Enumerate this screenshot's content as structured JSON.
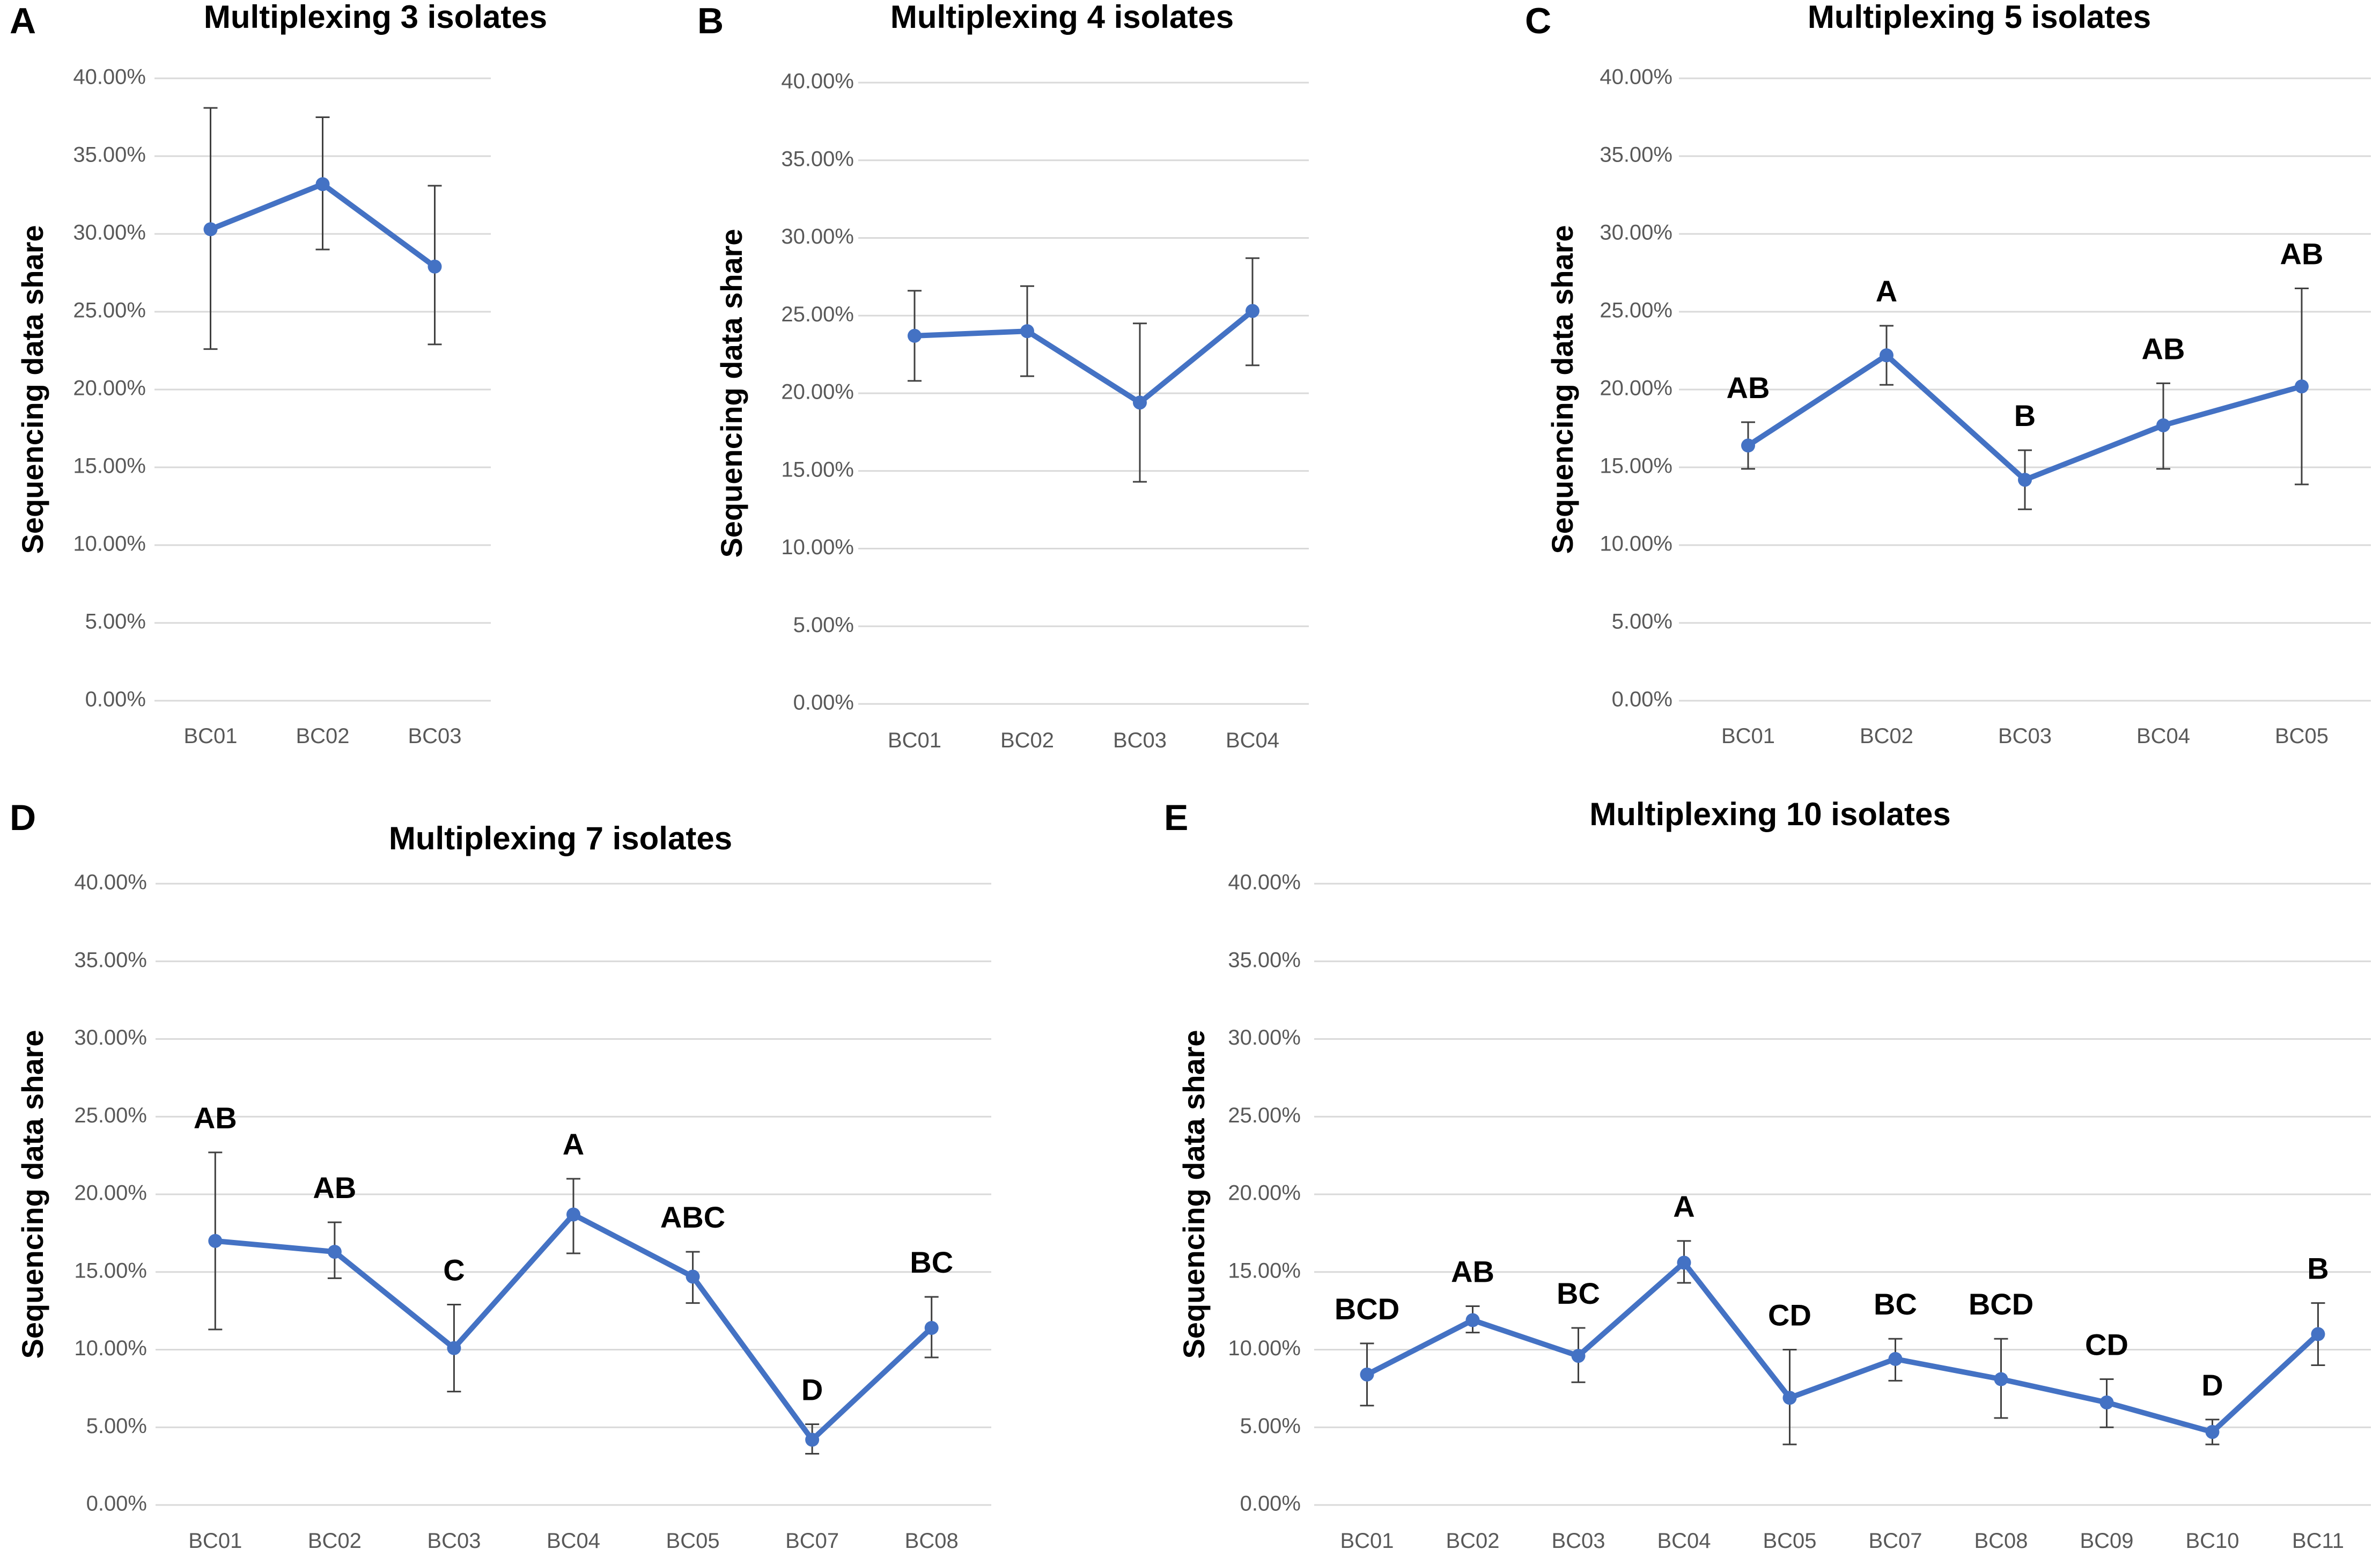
{
  "colors": {
    "series": "#4472c4",
    "grid": "#d9d9d9",
    "error_bar": "#404040",
    "tick_text": "#595959",
    "text": "#000000"
  },
  "chart_data": [
    {
      "panel": "A",
      "type": "line",
      "title": "Multiplexing 3 isolates",
      "ylabel": "Sequencing data share",
      "xlabel": "",
      "ylim": [
        0,
        40
      ],
      "yticks": [
        "0.00%",
        "5.00%",
        "10.00%",
        "15.00%",
        "20.00%",
        "25.00%",
        "30.00%",
        "35.00%",
        "40.00%"
      ],
      "categories": [
        "BC01",
        "BC02",
        "BC03"
      ],
      "values": [
        30.3,
        33.2,
        27.9
      ],
      "error_low": [
        22.6,
        29.0,
        22.9
      ],
      "error_high": [
        38.1,
        37.5,
        33.1
      ],
      "labels": [
        "",
        "",
        ""
      ],
      "grid": true
    },
    {
      "panel": "B",
      "type": "line",
      "title": "Multiplexing 4 isolates",
      "ylabel": "Sequencing data share",
      "xlabel": "",
      "ylim": [
        0,
        40
      ],
      "yticks": [
        "0.00%",
        "5.00%",
        "10.00%",
        "15.00%",
        "20.00%",
        "25.00%",
        "30.00%",
        "35.00%",
        "40.00%"
      ],
      "categories": [
        "BC01",
        "BC02",
        "BC03",
        "BC04"
      ],
      "values": [
        23.7,
        24.0,
        19.4,
        25.3
      ],
      "error_low": [
        20.8,
        21.1,
        14.3,
        21.8
      ],
      "error_high": [
        26.6,
        26.9,
        24.5,
        28.7
      ],
      "labels": [
        "",
        "",
        "",
        ""
      ],
      "grid": true
    },
    {
      "panel": "C",
      "type": "line",
      "title": "Multiplexing 5 isolates",
      "ylabel": "Sequencing data share",
      "xlabel": "",
      "ylim": [
        0,
        40
      ],
      "yticks": [
        "0.00%",
        "5.00%",
        "10.00%",
        "15.00%",
        "20.00%",
        "25.00%",
        "30.00%",
        "35.00%",
        "40.00%"
      ],
      "categories": [
        "BC01",
        "BC02",
        "BC03",
        "BC04",
        "BC05"
      ],
      "values": [
        16.4,
        22.2,
        14.2,
        17.7,
        20.2
      ],
      "error_low": [
        14.9,
        20.3,
        12.3,
        14.9,
        13.9
      ],
      "error_high": [
        17.9,
        24.1,
        16.1,
        20.4,
        26.5
      ],
      "labels": [
        "AB",
        "A",
        "B",
        "AB",
        "AB"
      ],
      "grid": true
    },
    {
      "panel": "D",
      "type": "line",
      "title": "Multiplexing 7 isolates",
      "ylabel": "Sequencing data share",
      "xlabel": "",
      "ylim": [
        0,
        40
      ],
      "yticks": [
        "0.00%",
        "5.00%",
        "10.00%",
        "15.00%",
        "20.00%",
        "25.00%",
        "30.00%",
        "35.00%",
        "40.00%"
      ],
      "categories": [
        "BC01",
        "BC02",
        "BC03",
        "BC04",
        "BC05",
        "BC07",
        "BC08"
      ],
      "values": [
        17.0,
        16.3,
        10.1,
        18.7,
        14.7,
        4.2,
        11.4
      ],
      "error_low": [
        11.3,
        14.6,
        7.3,
        16.2,
        13.0,
        3.3,
        9.5
      ],
      "error_high": [
        22.7,
        18.2,
        12.9,
        21.0,
        16.3,
        5.2,
        13.4
      ],
      "labels": [
        "AB",
        "AB",
        "C",
        "A",
        "ABC",
        "D",
        "BC"
      ],
      "grid": true
    },
    {
      "panel": "E",
      "type": "line",
      "title": "Multiplexing 10 isolates",
      "ylabel": "Sequencing data share",
      "xlabel": "",
      "ylim": [
        0,
        40
      ],
      "yticks": [
        "0.00%",
        "5.00%",
        "10.00%",
        "15.00%",
        "20.00%",
        "25.00%",
        "30.00%",
        "35.00%",
        "40.00%"
      ],
      "categories": [
        "BC01",
        "BC02",
        "BC03",
        "BC04",
        "BC05",
        "BC07",
        "BC08",
        "BC09",
        "BC10",
        "BC11"
      ],
      "values": [
        8.4,
        11.9,
        9.6,
        15.6,
        6.9,
        9.4,
        8.1,
        6.6,
        4.7,
        11.0
      ],
      "error_low": [
        6.4,
        11.1,
        7.9,
        14.3,
        3.9,
        8.0,
        5.6,
        5.0,
        3.9,
        9.0
      ],
      "error_high": [
        10.4,
        12.8,
        11.4,
        17.0,
        10.0,
        10.7,
        10.7,
        8.1,
        5.5,
        13.0
      ],
      "labels": [
        "BCD",
        "AB",
        "BC",
        "A",
        "CD",
        "BC",
        "BCD",
        "CD",
        "D",
        "B"
      ],
      "grid": true
    }
  ]
}
